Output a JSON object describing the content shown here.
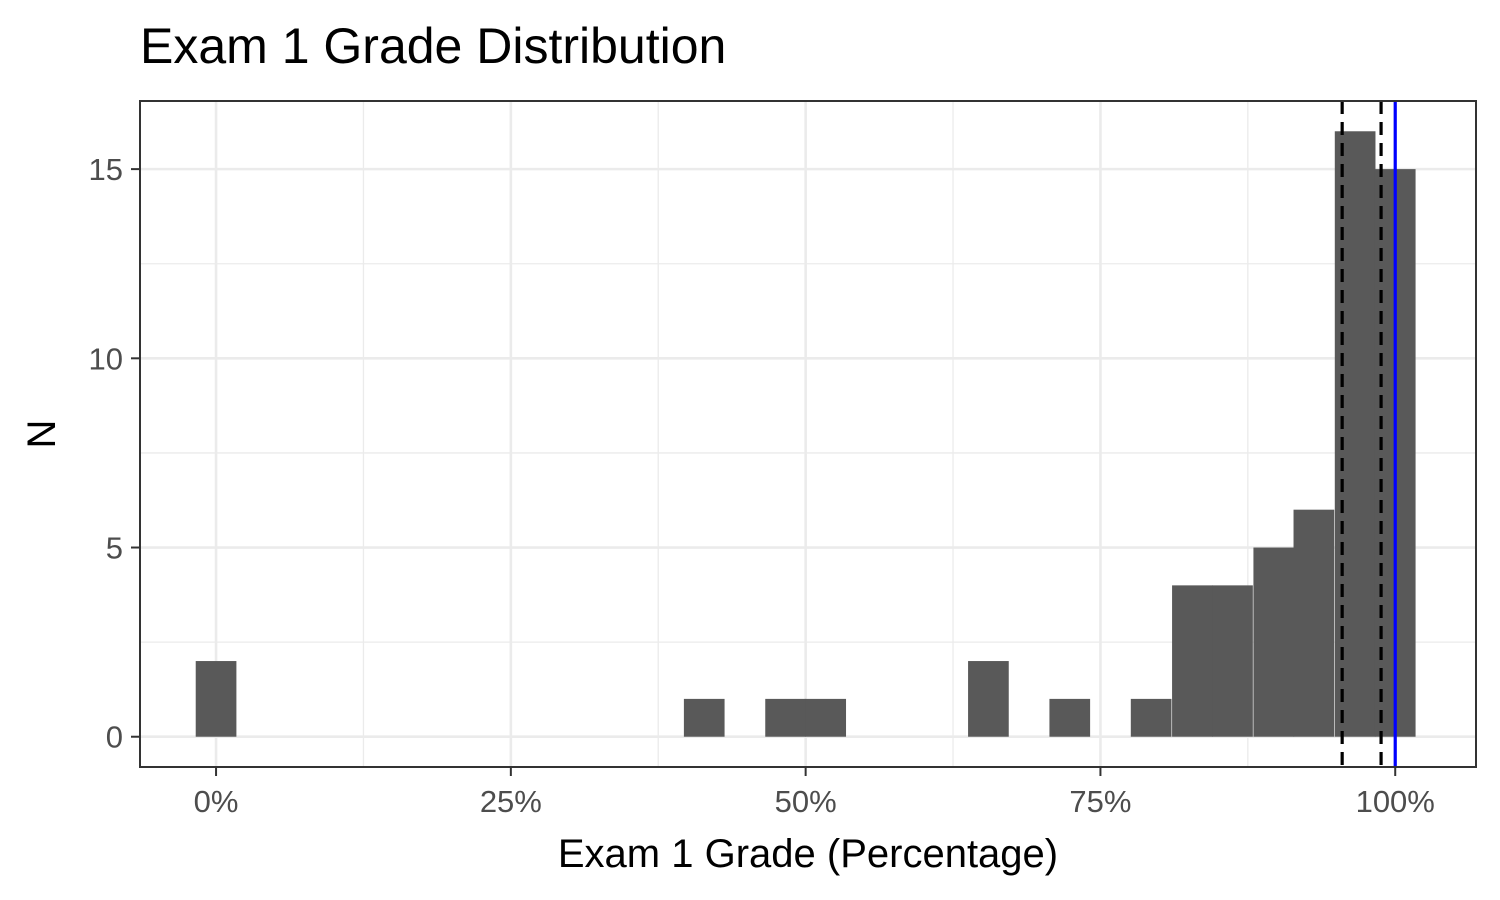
{
  "chart_data": {
    "type": "bar",
    "title": "Exam 1 Grade Distribution",
    "xlabel": "Exam 1 Grade (Percentage)",
    "ylabel": "N",
    "xlim": [
      -0.0645,
      1.0685
    ],
    "ylim": [
      -0.8,
      16.8
    ],
    "x_ticks": [
      0,
      0.25,
      0.5,
      0.75,
      1.0
    ],
    "x_tick_labels": [
      "0%",
      "25%",
      "50%",
      "75%",
      "100%"
    ],
    "y_ticks": [
      0,
      5,
      10,
      15
    ],
    "y_tick_labels": [
      "0",
      "5",
      "10",
      "15"
    ],
    "bin_width": 0.0345,
    "bins": [
      {
        "x": 0.0,
        "count": 2
      },
      {
        "x": 0.414,
        "count": 1
      },
      {
        "x": 0.483,
        "count": 1
      },
      {
        "x": 0.517,
        "count": 1
      },
      {
        "x": 0.655,
        "count": 2
      },
      {
        "x": 0.724,
        "count": 1
      },
      {
        "x": 0.793,
        "count": 1
      },
      {
        "x": 0.828,
        "count": 4
      },
      {
        "x": 0.862,
        "count": 4
      },
      {
        "x": 0.897,
        "count": 5
      },
      {
        "x": 0.931,
        "count": 6
      },
      {
        "x": 0.966,
        "count": 16
      },
      {
        "x": 1.0,
        "count": 15
      }
    ],
    "reference_lines": [
      {
        "x": 0.955,
        "style": "dashed",
        "color": "#000000"
      },
      {
        "x": 0.988,
        "style": "dashed",
        "color": "#000000"
      },
      {
        "x": 1.0,
        "style": "solid",
        "color": "#0000ff"
      }
    ],
    "bar_color": "#595959",
    "grid": true,
    "panel_border_color": "#333333",
    "grid_color": "#ebebeb"
  }
}
